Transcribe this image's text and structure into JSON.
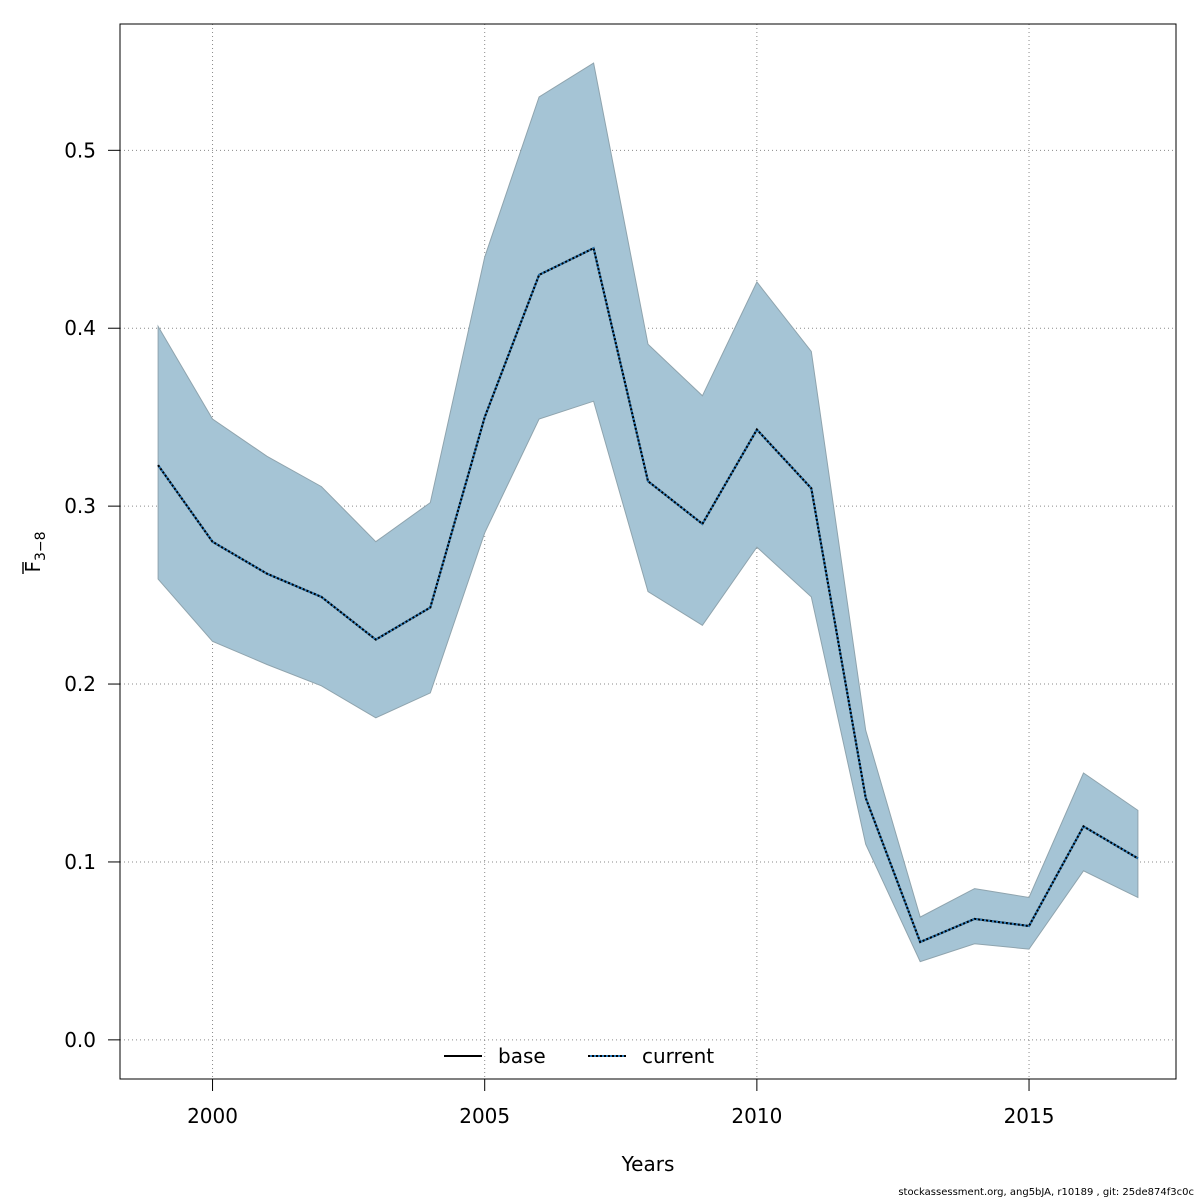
{
  "chart_data": {
    "type": "area",
    "xlabel": "Years",
    "ylabel_main": "F",
    "ylabel_sub": "3−8",
    "xlim": [
      1998.3,
      2017.7
    ],
    "ylim": [
      -0.022,
      0.571
    ],
    "x_ticks": [
      2000,
      2005,
      2010,
      2015
    ],
    "y_ticks": [
      0.0,
      0.1,
      0.2,
      0.3,
      0.4,
      0.5
    ],
    "y_tick_labels": [
      "0.0",
      "0.1",
      "0.2",
      "0.3",
      "0.4",
      "0.5"
    ],
    "grid": true,
    "legend_placement": "bottom-center",
    "colors": {
      "band_fill": "#a5c4d5",
      "band_stroke": "#8fa4ae",
      "base_line": "#000000",
      "current_line_a": "#000000",
      "current_line_b": "#2a7ab8",
      "grid": "#8a8a8a"
    },
    "x": [
      1999,
      2000,
      2001,
      2002,
      2003,
      2004,
      2005,
      2006,
      2007,
      2008,
      2009,
      2010,
      2011,
      2012,
      2013,
      2014,
      2015,
      2016,
      2017
    ],
    "band_upper": [
      0.401,
      0.349,
      0.328,
      0.311,
      0.28,
      0.302,
      0.44,
      0.53,
      0.549,
      0.391,
      0.362,
      0.426,
      0.387,
      0.174,
      0.069,
      0.085,
      0.08,
      0.15,
      0.129
    ],
    "band_lower": [
      0.259,
      0.224,
      0.211,
      0.199,
      0.181,
      0.195,
      0.285,
      0.349,
      0.359,
      0.252,
      0.233,
      0.277,
      0.249,
      0.11,
      0.044,
      0.054,
      0.051,
      0.095,
      0.08
    ],
    "series": [
      {
        "name": "base",
        "style": "solid",
        "values": [
          0.323,
          0.28,
          0.262,
          0.249,
          0.225,
          0.243,
          0.35,
          0.43,
          0.445,
          0.314,
          0.29,
          0.343,
          0.31,
          0.136,
          0.055,
          0.068,
          0.064,
          0.12,
          0.102
        ]
      },
      {
        "name": "current",
        "style": "dotted",
        "values": [
          0.323,
          0.28,
          0.262,
          0.249,
          0.225,
          0.243,
          0.35,
          0.43,
          0.445,
          0.314,
          0.29,
          0.343,
          0.31,
          0.136,
          0.055,
          0.068,
          0.064,
          0.12,
          0.102
        ]
      }
    ]
  },
  "footer": "stockassessment.org, ang5bJA, r10189 , git: 25de874f3c0c"
}
